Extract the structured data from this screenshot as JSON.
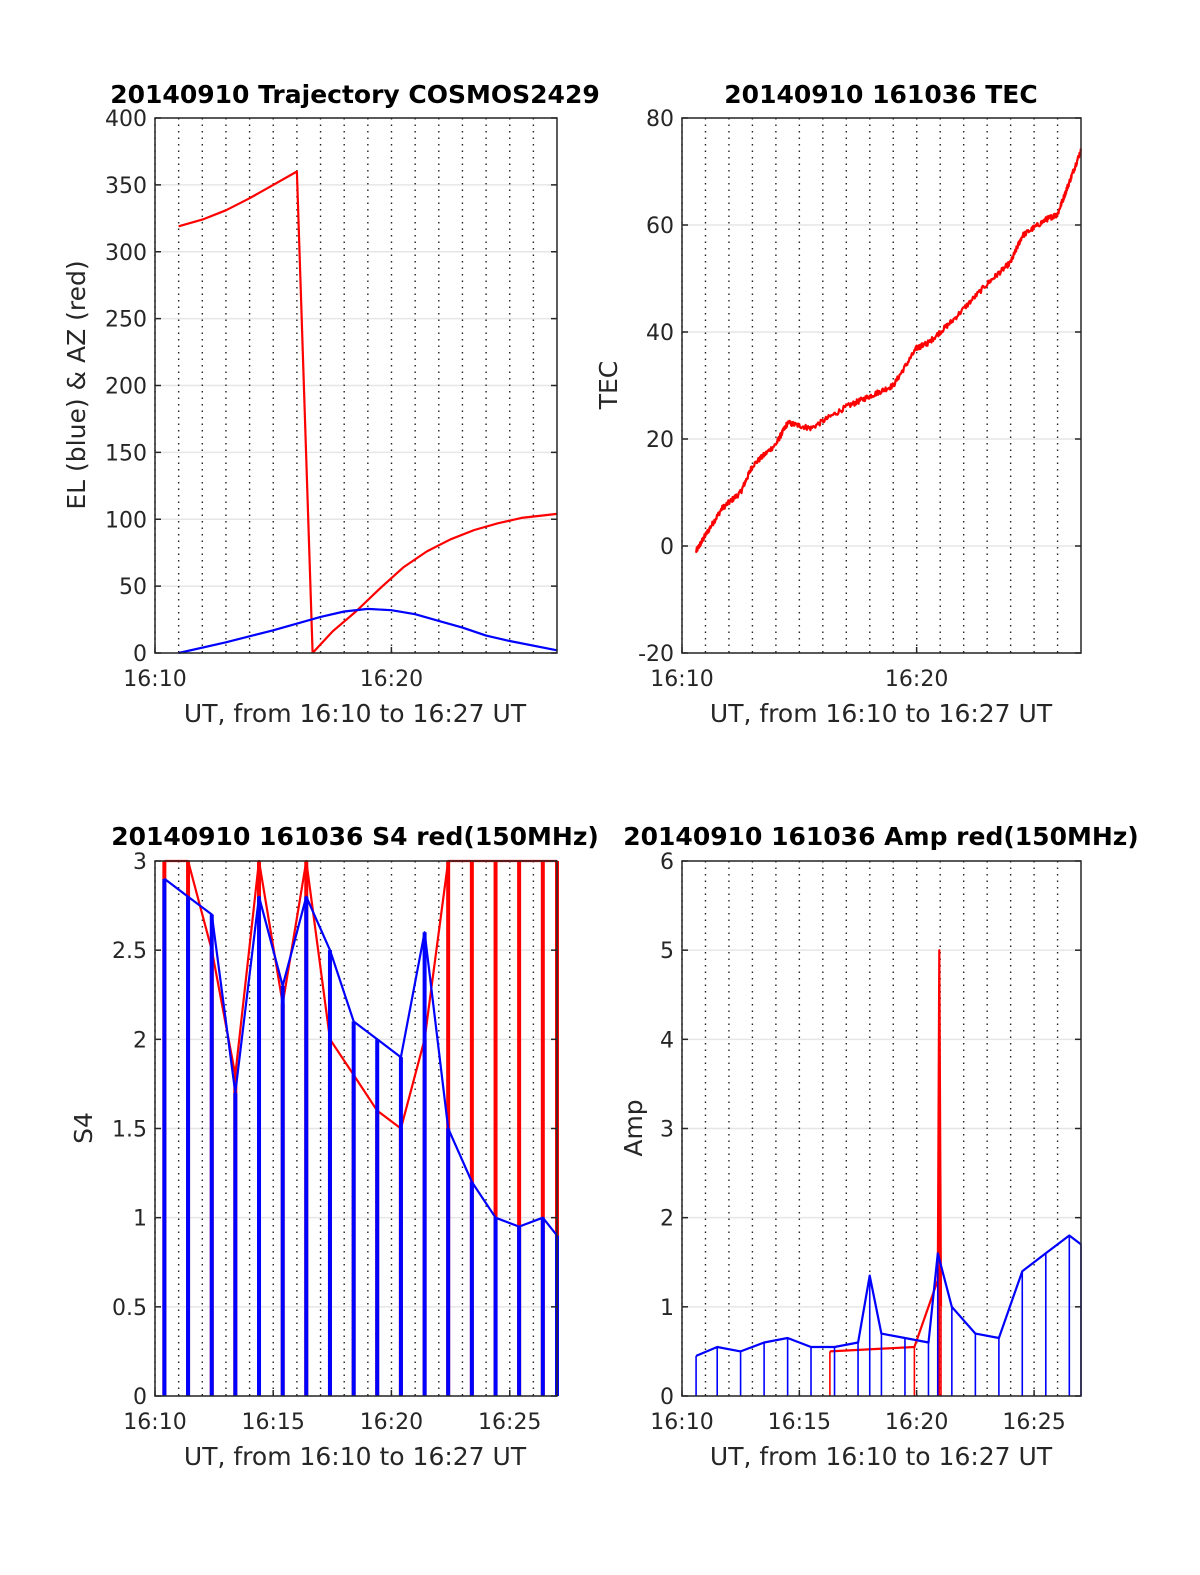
{
  "chart_data": [
    {
      "id": "trajectory",
      "type": "line",
      "title": "20140910 Trajectory COSMOS2429",
      "xlabel": "UT, from 16:10 to 16:27 UT",
      "ylabel": "EL (blue) & AZ (red)",
      "xlim": [
        16.1667,
        16.45
      ],
      "ylim": [
        0,
        400
      ],
      "grid": "x-dotted-major, y-light",
      "xticks": [
        {
          "value": 16.1667,
          "label": "16:10"
        },
        {
          "value": 16.3333,
          "label": "16:20"
        }
      ],
      "yticks": [
        0,
        50,
        100,
        150,
        200,
        250,
        300,
        350,
        400
      ],
      "series": [
        {
          "color": "#ff0000",
          "segments": [
            {
              "x": [
                16.1833,
                16.2,
                16.2167,
                16.2333,
                16.25,
                16.2667,
                16.2778
              ],
              "y": [
                319,
                324,
                331,
                340,
                350,
                360,
                0
              ]
            },
            {
              "x": [
                16.2778,
                16.2917,
                16.3083,
                16.325,
                16.3417,
                16.3583,
                16.375,
                16.3917,
                16.4083,
                16.425,
                16.45
              ],
              "y": [
                0,
                16,
                31,
                48,
                64,
                76,
                85,
                92,
                97,
                101,
                104
              ]
            }
          ]
        },
        {
          "color": "#0000ff",
          "segments": [
            {
              "x": [
                16.1833,
                16.2167,
                16.25,
                16.2833,
                16.3,
                16.3167,
                16.3333,
                16.35,
                16.3667,
                16.3833,
                16.4,
                16.4167,
                16.45
              ],
              "y": [
                0,
                8,
                17,
                27,
                31,
                33,
                32,
                29,
                24,
                19,
                13,
                9,
                2
              ]
            }
          ]
        }
      ]
    },
    {
      "id": "tec",
      "type": "line",
      "title": "20140910 161036 TEC",
      "xlabel": "UT, from 16:10 to 16:27 UT",
      "ylabel": "TEC",
      "xlim": [
        16.1667,
        16.45
      ],
      "ylim": [
        -20,
        80
      ],
      "grid": "x-dotted-major, y-light",
      "xticks": [
        {
          "value": 16.1667,
          "label": "16:10"
        },
        {
          "value": 16.3333,
          "label": "16:20"
        }
      ],
      "yticks": [
        -20,
        0,
        20,
        40,
        60,
        80
      ],
      "series": [
        {
          "color": "#ff0000",
          "noise": 0.5,
          "segments": [
            {
              "x": [
                16.1767,
                16.1833,
                16.195,
                16.2083,
                16.2167,
                16.2333,
                16.2417,
                16.2583,
                16.2833,
                16.3,
                16.3167,
                16.3333,
                16.3417,
                16.3583,
                16.3833,
                16.4,
                16.4083,
                16.425,
                16.4333,
                16.4417,
                16.45
              ],
              "y": [
                -1,
                2,
                7,
                10,
                15,
                19,
                23,
                22,
                26,
                28,
                30,
                37,
                38,
                42,
                49,
                53,
                58,
                61,
                62,
                68,
                74
              ]
            }
          ]
        }
      ]
    },
    {
      "id": "s4",
      "type": "line",
      "title": "20140910 161036 S4 red(150MHz)",
      "xlabel": "UT, from 16:10 to 16:27 UT",
      "ylabel": "S4",
      "xlim": [
        16.1667,
        16.45
      ],
      "ylim": [
        0,
        3
      ],
      "grid": "x-dotted-major, y-light",
      "xticks": [
        {
          "value": 16.1667,
          "label": "16:10"
        },
        {
          "value": 16.25,
          "label": "16:15"
        },
        {
          "value": 16.3333,
          "label": "16:20"
        },
        {
          "value": 16.4167,
          "label": "16:25"
        }
      ],
      "yticks": [
        0,
        0.5,
        1,
        1.5,
        2,
        2.5,
        3
      ],
      "series": [
        {
          "color": "#ff0000",
          "x": [
            16.1733,
            16.19,
            16.2067,
            16.2233,
            16.24,
            16.2567,
            16.2733,
            16.29,
            16.3067,
            16.3233,
            16.34,
            16.3567,
            16.3733,
            16.39,
            16.4067,
            16.4233,
            16.44,
            16.45
          ],
          "y": [
            3,
            3,
            2.5,
            1.8,
            3,
            2.2,
            3,
            2.0,
            1.8,
            1.6,
            1.5,
            2.0,
            3,
            3,
            3,
            3,
            3,
            3
          ]
        },
        {
          "color": "#0000ff",
          "x": [
            16.1733,
            16.19,
            16.2067,
            16.2233,
            16.24,
            16.2567,
            16.2733,
            16.29,
            16.3067,
            16.3233,
            16.34,
            16.3567,
            16.3733,
            16.39,
            16.4067,
            16.4233,
            16.44,
            16.45
          ],
          "y": [
            2.9,
            2.8,
            2.7,
            1.7,
            2.8,
            2.3,
            2.8,
            2.5,
            2.1,
            2.0,
            1.9,
            2.6,
            1.5,
            1.2,
            1.0,
            0.95,
            1.0,
            0.9
          ]
        }
      ]
    },
    {
      "id": "amp",
      "type": "line",
      "title": "20140910 161036 Amp red(150MHz)",
      "xlabel": "UT, from 16:10 to 16:27 UT",
      "ylabel": "Amp",
      "xlim": [
        16.1667,
        16.45
      ],
      "ylim": [
        0,
        6
      ],
      "grid": "x-dotted-major, y-light",
      "xticks": [
        {
          "value": 16.1667,
          "label": "16:10"
        },
        {
          "value": 16.25,
          "label": "16:15"
        },
        {
          "value": 16.3333,
          "label": "16:20"
        },
        {
          "value": 16.4167,
          "label": "16:25"
        }
      ],
      "yticks": [
        0,
        1,
        2,
        3,
        4,
        5,
        6
      ],
      "series": [
        {
          "color": "#ff0000",
          "x": [
            16.2717,
            16.3317,
            16.3483,
            16.3494,
            16.3506
          ],
          "y": [
            0.5,
            0.55,
            1.3,
            5.0,
            1.0
          ]
        },
        {
          "color": "#0000ff",
          "x": [
            16.1767,
            16.1917,
            16.2083,
            16.225,
            16.2417,
            16.2583,
            16.275,
            16.2917,
            16.3,
            16.3083,
            16.325,
            16.3417,
            16.3483,
            16.3583,
            16.375,
            16.3917,
            16.4083,
            16.425,
            16.4417,
            16.45
          ],
          "y": [
            0.45,
            0.55,
            0.5,
            0.6,
            0.65,
            0.55,
            0.55,
            0.6,
            1.35,
            0.7,
            0.65,
            0.6,
            1.6,
            1.0,
            0.7,
            0.65,
            1.4,
            1.6,
            1.8,
            1.7
          ]
        }
      ]
    }
  ]
}
